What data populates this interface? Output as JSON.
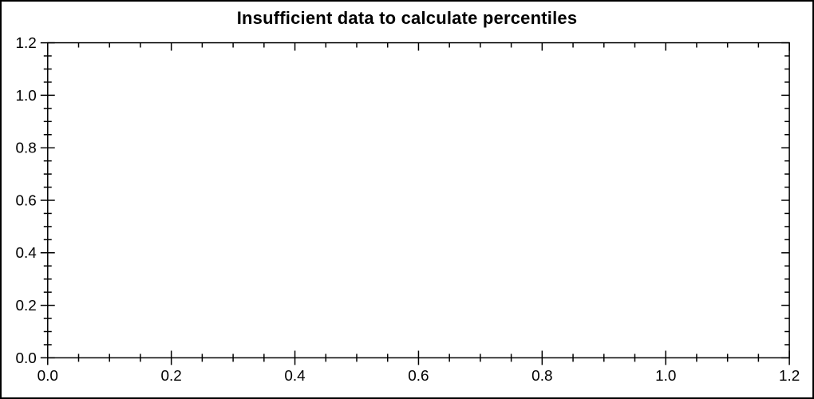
{
  "colors": {
    "background": "#ffffff",
    "frame": "#000000",
    "text": "#000000"
  },
  "chart_data": {
    "type": "scatter",
    "title": "Insufficient data to calculate percentiles",
    "series": [],
    "grid": false,
    "framed": true,
    "x_axis": {
      "min": 0.0,
      "max": 1.2,
      "major_ticks": [
        0.0,
        0.2,
        0.4,
        0.6,
        0.8,
        1.0,
        1.2
      ],
      "tick_labels": [
        "0.0",
        "0.2",
        "0.4",
        "0.6",
        "0.8",
        "1.0",
        "1.2"
      ],
      "minor_tick_interval": 0.05
    },
    "y_axis": {
      "min": 0.0,
      "max": 1.2,
      "major_ticks": [
        0.0,
        0.2,
        0.4,
        0.6,
        0.8,
        1.0,
        1.2
      ],
      "tick_labels": [
        "0.0",
        "0.2",
        "0.4",
        "0.6",
        "0.8",
        "1.0",
        "1.2"
      ],
      "minor_tick_interval": 0.05
    }
  }
}
